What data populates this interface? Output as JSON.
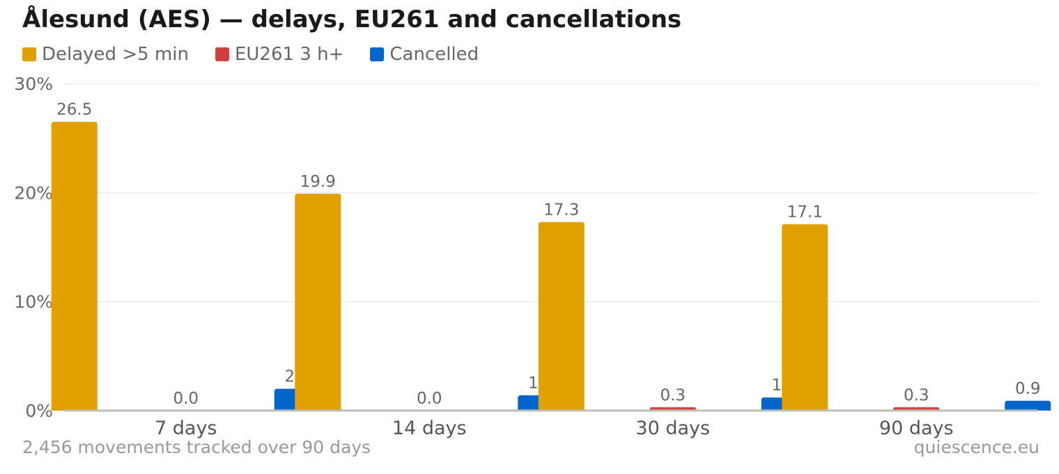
{
  "page": {
    "title": "Ålesund (AES) — delays, EU261 and cancellations",
    "footer_note": "2,456 movements tracked over 90 days",
    "footer_source": "quiescence.eu"
  },
  "chart_data": {
    "type": "bar",
    "title": "Ålesund (AES) — delays, EU261 and cancellations",
    "xlabel": "",
    "ylabel": "",
    "categories": [
      "7 days",
      "14 days",
      "30 days",
      "90 days"
    ],
    "series": [
      {
        "name": "Delayed >5 min",
        "color": "#E0A000",
        "values": [
          26.5,
          19.9,
          17.3,
          17.1
        ]
      },
      {
        "name": "EU261 3 h+",
        "color": "#D13F3F",
        "values": [
          0.0,
          0.0,
          0.3,
          0.3
        ]
      },
      {
        "name": "Cancelled",
        "color": "#0066CC",
        "values": [
          2.0,
          1.4,
          1.2,
          0.9
        ]
      }
    ],
    "ylim": [
      0,
      30
    ],
    "yticks": [
      0,
      10,
      20,
      30
    ],
    "ytick_labels": [
      "0%",
      "10%",
      "20%",
      "30%"
    ],
    "data_labels": true,
    "grid": true,
    "legend_position": "top-left"
  }
}
